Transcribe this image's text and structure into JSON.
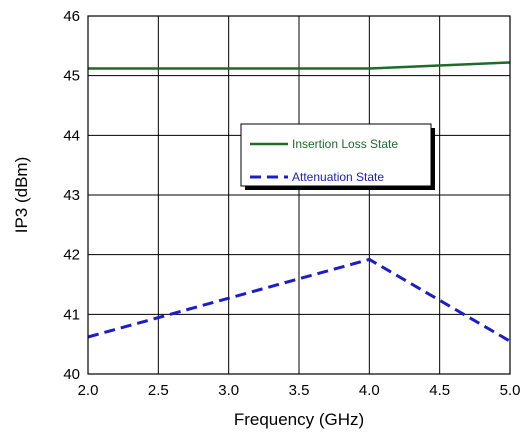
{
  "chart_data": {
    "type": "line",
    "xlabel": "Frequency (GHz)",
    "ylabel": "IP3 (dBm)",
    "xlim": [
      2.0,
      5.0
    ],
    "ylim": [
      40,
      46
    ],
    "x_ticks": [
      "2.0",
      "2.5",
      "3.0",
      "3.5",
      "4.0",
      "4.5",
      "5.0"
    ],
    "y_ticks": [
      "40",
      "41",
      "42",
      "43",
      "44",
      "45",
      "46"
    ],
    "grid": true,
    "legend_placement": "center-right",
    "series": [
      {
        "name": "Insertion Loss State",
        "color": "#1e6b2a",
        "dash": "solid",
        "x": [
          2.0,
          4.0,
          5.0
        ],
        "y": [
          45.12,
          45.12,
          45.22
        ]
      },
      {
        "name": "Attenuation State",
        "color": "#1c1cc8",
        "dash": "dashed",
        "x": [
          2.0,
          4.0,
          5.0
        ],
        "y": [
          40.62,
          41.92,
          40.55
        ]
      }
    ]
  }
}
